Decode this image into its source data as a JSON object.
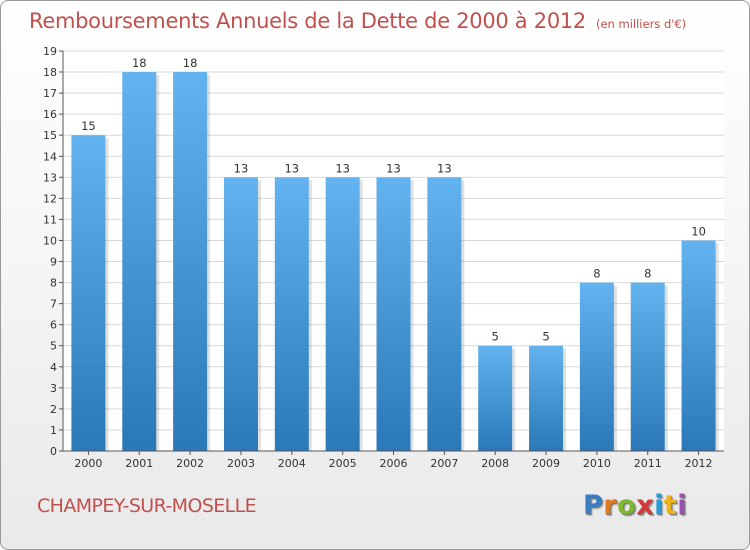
{
  "header": {
    "title": "Remboursements Annuels de la Dette de 2000 à 2012",
    "unit": "(en milliers d'€)"
  },
  "footer": {
    "town": "CHAMPEY-SUR-MOSELLE",
    "logo": [
      "P",
      "r",
      "o",
      "x",
      "i",
      "t",
      "i"
    ]
  },
  "colors": {
    "title": "#c0504d",
    "bar_top": "#62b3ef",
    "bar_bottom": "#2a78b8",
    "grid": "#d9d9d9",
    "axis": "#555555"
  },
  "chart_data": {
    "type": "bar",
    "title": "Remboursements Annuels de la Dette de 2000 à 2012",
    "xlabel": "",
    "ylabel": "",
    "categories": [
      "2000",
      "2001",
      "2002",
      "2003",
      "2004",
      "2005",
      "2006",
      "2007",
      "2008",
      "2009",
      "2010",
      "2011",
      "2012"
    ],
    "values": [
      15,
      18,
      18,
      13,
      13,
      13,
      13,
      13,
      5,
      5,
      8,
      8,
      10
    ],
    "data_labels": [
      "15",
      "18",
      "18",
      "13",
      "13",
      "13",
      "13",
      "13",
      "5",
      "5",
      "8",
      "8",
      "10"
    ],
    "ylim": [
      0,
      19
    ],
    "yticks": [
      0,
      1,
      2,
      3,
      4,
      5,
      6,
      7,
      8,
      9,
      10,
      11,
      12,
      13,
      14,
      15,
      16,
      17,
      18,
      19
    ],
    "grid": true,
    "legend": "none"
  }
}
